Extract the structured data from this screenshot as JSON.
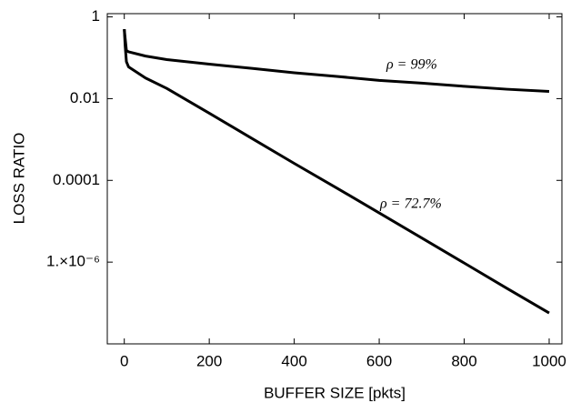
{
  "chart_data": {
    "type": "line",
    "x_label": "BUFFER SIZE  [pkts]",
    "y_label": "LOSS RATIO",
    "x": [
      0,
      2,
      5,
      10,
      50,
      100,
      200,
      300,
      400,
      500,
      600,
      700,
      800,
      900,
      1000
    ],
    "series": [
      {
        "name": "ρ = 99%",
        "color": "#000000",
        "values": [
          0.5,
          0.3,
          0.15,
          0.14,
          0.11,
          0.09,
          0.07,
          0.055,
          0.043,
          0.035,
          0.028,
          0.024,
          0.02,
          0.017,
          0.015
        ]
      },
      {
        "name": "ρ = 72.7%",
        "color": "#000000",
        "values": [
          0.5,
          0.2,
          0.08,
          0.06,
          0.032,
          0.0178,
          0.0044,
          0.00107,
          0.00026,
          6.5e-05,
          1.6e-05,
          3.9e-06,
          9.5e-07,
          2.3e-07,
          5.7e-08
        ]
      }
    ],
    "xlim": [
      -40,
      1030
    ],
    "ylim": [
      1e-08,
      1.2
    ],
    "y_scale": "log",
    "xticks": [
      0,
      200,
      400,
      600,
      800,
      1000
    ],
    "yticks": [
      1,
      0.01,
      0.0001,
      {
        "value": 1e-06,
        "label": "1.×10⁻⁶"
      }
    ],
    "grid": false
  }
}
